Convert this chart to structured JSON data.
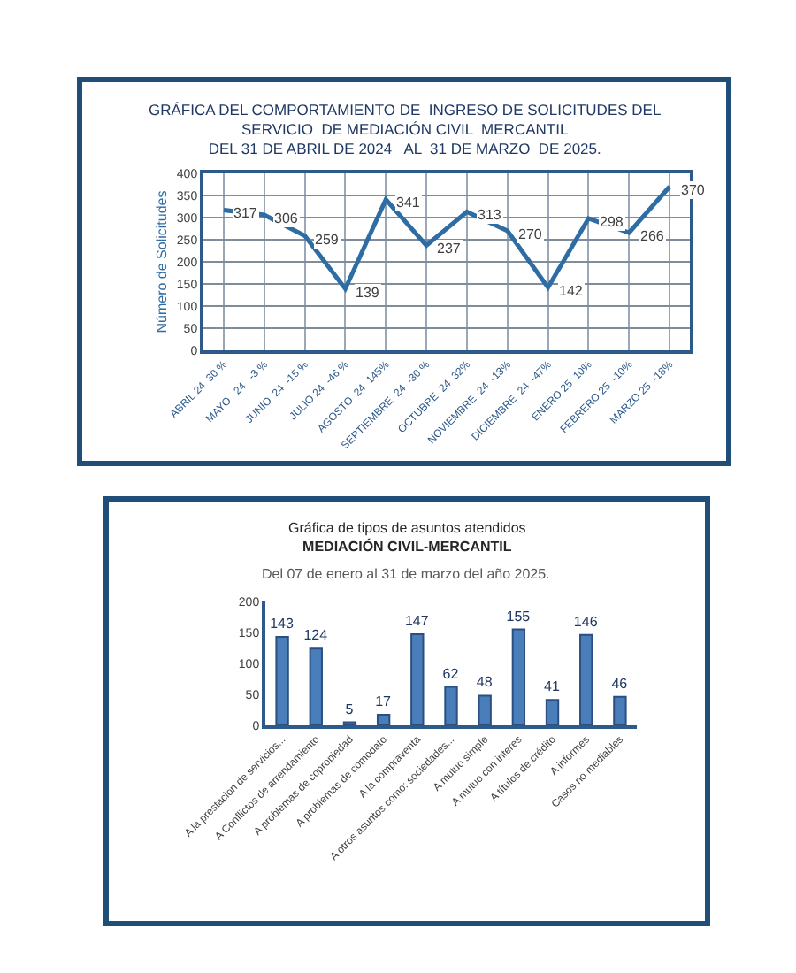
{
  "chart_data": [
    {
      "type": "line",
      "title": "GRÁFICA DEL COMPORTAMIENTO DE  INGRESO DE SOLICITUDES DEL\nSERVICIO  DE MEDIACIÓN CIVIL  MERCANTIL\nDEL 31 DE ABRIL DE 2024   AL  31 DE MARZO  DE 2025.",
      "ylabel": "Número de Solicitudes",
      "categories": [
        "ABRIL 24  30 %",
        "MAYO   24   -3 %",
        "JUNIO  24  -15 %",
        "JULIO 24  -46 %",
        "AGOSTO  24  145%",
        "SEPTIEMBRE  24  -30 %",
        "OCTUBRE  24  32%",
        "NOVIEMBRE  24  -13%",
        "DICIEMBRE  24  -47%",
        "ENERO 25  10%",
        "FEBRERO 25  -10%",
        "MARZO 25  -18%"
      ],
      "series": [
        {
          "color": "#2e6da4",
          "values": [
            317,
            306,
            259,
            139,
            341,
            237,
            313,
            270,
            142,
            298,
            266,
            370
          ]
        }
      ],
      "ylim": [
        0,
        400
      ],
      "yticks": [
        0,
        50,
        100,
        150,
        200,
        250,
        300,
        350,
        400
      ],
      "grid": true,
      "data_labels": true,
      "marker": "none",
      "line_style": "solid"
    },
    {
      "type": "bar",
      "title": "Gráfica de tipos de asuntos atendidos\nMEDIACIÓN CIVIL-MERCANTIL",
      "subtitle": "Del 07 de enero al 31 de marzo del año 2025.",
      "categories": [
        "A la prestacion de servicios...",
        "A Conflictos de arrendamiento",
        "A problemas de copropiedad",
        "A problemas de comodato",
        "A la compraventa",
        "A otros asuntos como: sociedades...",
        "A mutuo simple",
        "A mutuo con interes",
        "A títulos de crédito",
        "A informes",
        "Casos no mediables"
      ],
      "series": [
        {
          "color": "#4a7ebb",
          "values": [
            143,
            124,
            5,
            17,
            147,
            62,
            48,
            155,
            41,
            146,
            46
          ]
        }
      ],
      "ylim": [
        0,
        200
      ],
      "yticks": [
        0,
        50,
        100,
        150,
        200
      ],
      "grid": false,
      "data_labels": true
    }
  ]
}
